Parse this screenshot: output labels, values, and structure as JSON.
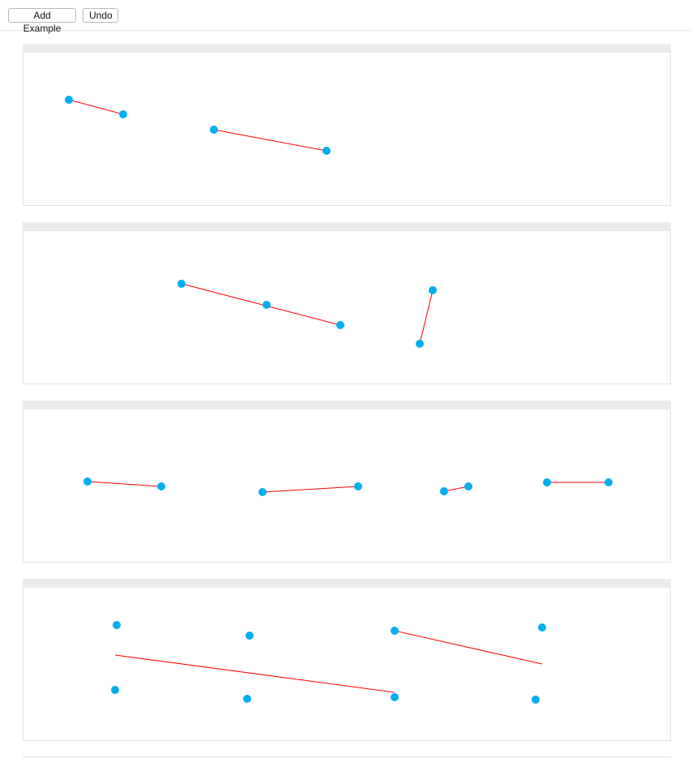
{
  "toolbar": {
    "add_label": "Add Example",
    "undo_label": "Undo"
  },
  "colors": {
    "point": "#00aeef",
    "line": "#ff0000",
    "panel_header": "#ebebeb",
    "panel_border": "#e3e3e3"
  }
}
